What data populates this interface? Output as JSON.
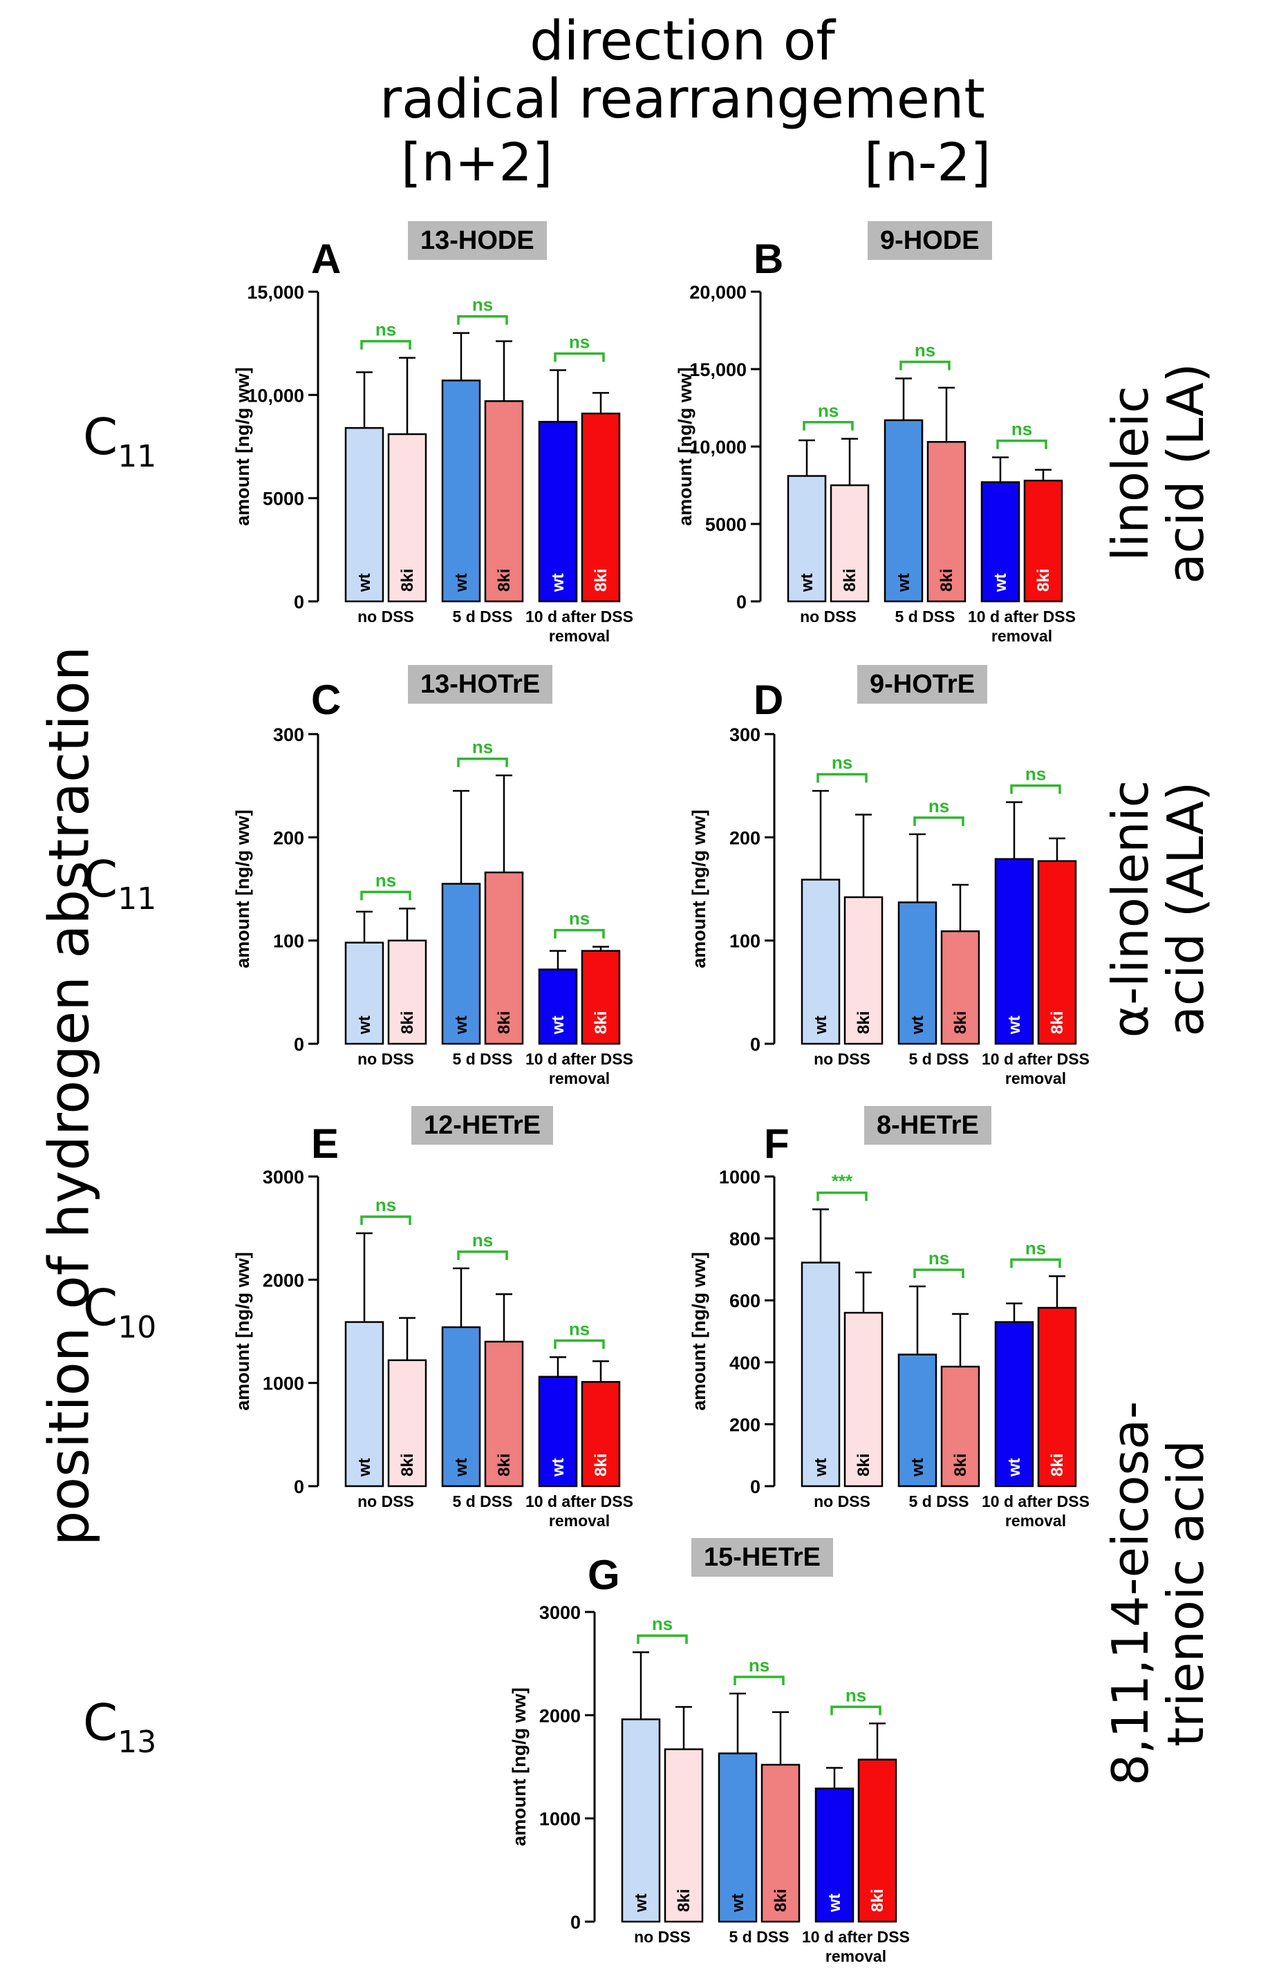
{
  "header": {
    "line1": "direction of",
    "line2": "radical rearrangement",
    "left_bracket": "[n+2]",
    "right_bracket": "[n-2]"
  },
  "left_axis_title": "position of hydrogen abstraction",
  "positions": [
    {
      "base": "C",
      "sub": "11"
    },
    {
      "base": "C",
      "sub": "11"
    },
    {
      "base": "C",
      "sub": "10"
    },
    {
      "base": "C",
      "sub": "13"
    }
  ],
  "acids": [
    {
      "line1": "linoleic",
      "line2": "acid (LA)"
    },
    {
      "line1": "α-linolenic",
      "line2": "acid (ALA)"
    },
    {
      "line1": "8,11,14-eicosa-",
      "line2": "trienoic acid"
    }
  ],
  "colors": {
    "wt_no": "#c6dbf5",
    "ki_no": "#fde0e1",
    "wt_5d": "#4a90e2",
    "ki_5d": "#f07f7f",
    "wt_10d": "#0a00f5",
    "ki_10d": "#f60c0c",
    "sig": "#2eb82e",
    "panel_tag": "#b9b9b9"
  },
  "chart_data": [
    {
      "id": "A",
      "title": "13-HODE",
      "type": "bar",
      "ylabel": "amount [ng/g ww]",
      "ylim": [
        0,
        15000
      ],
      "yticks": [
        0,
        5000,
        10000,
        15000
      ],
      "ytick_labels": [
        "0",
        "5000",
        "10,000",
        "15,000"
      ],
      "groups": [
        "no DSS",
        "5  d DSS",
        "10 d after DSS",
        "removal"
      ],
      "series": [
        {
          "name": "wt",
          "values": [
            8400,
            10700,
            8700
          ],
          "errors": [
            2700,
            2300,
            2500
          ]
        },
        {
          "name": "8ki",
          "values": [
            8100,
            9700,
            9100
          ],
          "errors": [
            3700,
            2900,
            1000
          ]
        }
      ],
      "significance": [
        "ns",
        "ns",
        "ns"
      ]
    },
    {
      "id": "B",
      "title": "9-HODE",
      "type": "bar",
      "ylabel": "amount [ng/g ww]",
      "ylim": [
        0,
        20000
      ],
      "yticks": [
        0,
        5000,
        10000,
        15000,
        20000
      ],
      "ytick_labels": [
        "0",
        "5000",
        "10,000",
        "15,000",
        "20,000"
      ],
      "groups": [
        "no DSS",
        "5  d DSS",
        "10 d after DSS",
        "removal"
      ],
      "series": [
        {
          "name": "wt",
          "values": [
            8100,
            11700,
            7700
          ],
          "errors": [
            2300,
            2700,
            1600
          ]
        },
        {
          "name": "8ki",
          "values": [
            7500,
            10300,
            7800
          ],
          "errors": [
            3000,
            3500,
            700
          ]
        }
      ],
      "significance": [
        "ns",
        "ns",
        "ns"
      ]
    },
    {
      "id": "C",
      "title": "13-HOTrE",
      "type": "bar",
      "ylabel": "amount [ng/g ww]",
      "ylim": [
        0,
        300
      ],
      "yticks": [
        0,
        100,
        200,
        300
      ],
      "ytick_labels": [
        "0",
        "100",
        "200",
        "300"
      ],
      "groups": [
        "no DSS",
        "5  d DSS",
        "10 d after DSS",
        "removal"
      ],
      "series": [
        {
          "name": "wt",
          "values": [
            98,
            155,
            72
          ],
          "errors": [
            30,
            90,
            18
          ]
        },
        {
          "name": "8ki",
          "values": [
            100,
            166,
            90
          ],
          "errors": [
            31,
            94,
            4
          ]
        }
      ],
      "significance": [
        "ns",
        "ns",
        "ns"
      ]
    },
    {
      "id": "D",
      "title": "9-HOTrE",
      "type": "bar",
      "ylabel": "amount [ng/g ww]",
      "ylim": [
        0,
        300
      ],
      "yticks": [
        0,
        100,
        200,
        300
      ],
      "ytick_labels": [
        "0",
        "100",
        "200",
        "300"
      ],
      "groups": [
        "no DSS",
        "5  d DSS",
        "10 d after DSS",
        "removal"
      ],
      "series": [
        {
          "name": "wt",
          "values": [
            159,
            137,
            179
          ],
          "errors": [
            86,
            66,
            55
          ]
        },
        {
          "name": "8ki",
          "values": [
            142,
            109,
            177
          ],
          "errors": [
            80,
            45,
            22
          ]
        }
      ],
      "significance": [
        "ns",
        "ns",
        "ns"
      ]
    },
    {
      "id": "E",
      "title": "12-HETrE",
      "type": "bar",
      "ylabel": "amount [ng/g ww]",
      "ylim": [
        0,
        3000
      ],
      "yticks": [
        0,
        1000,
        2000,
        3000
      ],
      "ytick_labels": [
        "0",
        "1000",
        "2000",
        "3000"
      ],
      "groups": [
        "no DSS",
        "5  d DSS",
        "10 d after DSS",
        "removal"
      ],
      "series": [
        {
          "name": "wt",
          "values": [
            1590,
            1540,
            1060
          ],
          "errors": [
            860,
            570,
            190
          ]
        },
        {
          "name": "8ki",
          "values": [
            1220,
            1400,
            1010
          ],
          "errors": [
            410,
            460,
            200
          ]
        }
      ],
      "significance": [
        "ns",
        "ns",
        "ns"
      ]
    },
    {
      "id": "F",
      "title": "8-HETrE",
      "type": "bar",
      "ylabel": "amount [ng/g ww]",
      "ylim": [
        0,
        1000
      ],
      "yticks": [
        0,
        200,
        400,
        600,
        800,
        1000
      ],
      "ytick_labels": [
        "0",
        "200",
        "400",
        "600",
        "800",
        "1000"
      ],
      "groups": [
        "no DSS",
        "5  d DSS",
        "10 d after DSS",
        "removal"
      ],
      "series": [
        {
          "name": "wt",
          "values": [
            722,
            425,
            530
          ],
          "errors": [
            172,
            220,
            60
          ]
        },
        {
          "name": "8ki",
          "values": [
            560,
            386,
            576
          ],
          "errors": [
            130,
            170,
            102
          ]
        }
      ],
      "significance": [
        "***",
        "ns",
        "ns"
      ]
    },
    {
      "id": "G",
      "title": "15-HETrE",
      "type": "bar",
      "ylabel": "amount [ng/g ww]",
      "ylim": [
        0,
        3000
      ],
      "yticks": [
        0,
        1000,
        2000,
        3000
      ],
      "ytick_labels": [
        "0",
        "1000",
        "2000",
        "3000"
      ],
      "groups": [
        "no DSS",
        "5  d DSS",
        "10 d after DSS",
        "removal"
      ],
      "series": [
        {
          "name": "wt",
          "values": [
            1960,
            1630,
            1290
          ],
          "errors": [
            650,
            580,
            200
          ]
        },
        {
          "name": "8ki",
          "values": [
            1670,
            1520,
            1570
          ],
          "errors": [
            410,
            510,
            350
          ]
        }
      ],
      "significance": [
        "ns",
        "ns",
        "ns"
      ]
    }
  ]
}
